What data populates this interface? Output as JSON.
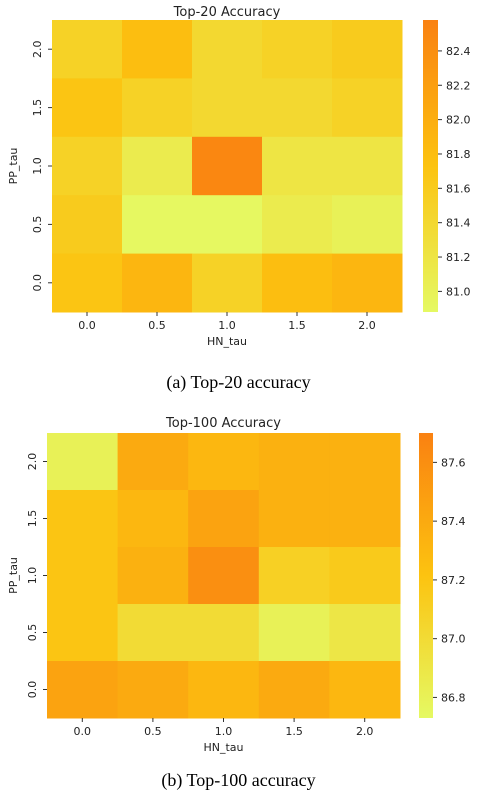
{
  "chart_data": [
    {
      "type": "heatmap",
      "title": "Top-20 Accuracy",
      "xlabel": "HN_tau",
      "ylabel": "PP_tau",
      "x_categories": [
        "0.0",
        "0.5",
        "1.0",
        "1.5",
        "2.0"
      ],
      "y_categories": [
        "2.0",
        "1.5",
        "1.0",
        "0.5",
        "0.0"
      ],
      "values": [
        [
          81.5,
          81.8,
          81.4,
          81.5,
          81.6
        ],
        [
          81.7,
          81.5,
          81.4,
          81.4,
          81.5
        ],
        [
          81.5,
          81.1,
          82.5,
          81.2,
          81.2
        ],
        [
          81.6,
          80.9,
          80.9,
          81.1,
          81.0
        ],
        [
          81.7,
          81.9,
          81.5,
          81.8,
          81.9
        ]
      ],
      "colorbar": {
        "min": 80.88,
        "max": 82.58,
        "ticks": [
          "81.0",
          "81.2",
          "81.4",
          "81.6",
          "81.8",
          "82.0",
          "82.2",
          "82.4"
        ]
      },
      "colors": {
        "low": "#e5f963",
        "mid": "#fcc310",
        "high": "#fa8111"
      },
      "caption": "(a) Top-20 accuracy"
    },
    {
      "type": "heatmap",
      "title": "Top-100 Accuracy",
      "xlabel": "HN_tau",
      "ylabel": "PP_tau",
      "x_categories": [
        "0.0",
        "0.5",
        "1.0",
        "1.5",
        "2.0"
      ],
      "y_categories": [
        "2.0",
        "1.5",
        "1.0",
        "0.5",
        "0.0"
      ],
      "values": [
        [
          86.8,
          87.4,
          87.3,
          87.35,
          87.35
        ],
        [
          87.2,
          87.3,
          87.45,
          87.35,
          87.35
        ],
        [
          87.2,
          87.35,
          87.6,
          87.1,
          87.15
        ],
        [
          87.2,
          87.0,
          87.0,
          86.8,
          86.9
        ],
        [
          87.45,
          87.4,
          87.3,
          87.4,
          87.3
        ]
      ],
      "colorbar": {
        "min": 86.73,
        "max": 87.7,
        "ticks": [
          "86.8",
          "87.0",
          "87.2",
          "87.4",
          "87.6"
        ]
      },
      "colors": {
        "low": "#e5f963",
        "mid": "#fcc310",
        "high": "#fa8111"
      },
      "caption": "(b) Top-100 accuracy"
    }
  ]
}
